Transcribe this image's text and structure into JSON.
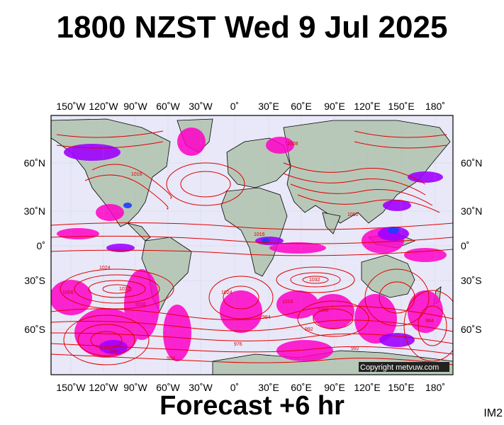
{
  "title": "1800 NZST Wed 9 Jul 2025",
  "subtitle": "Forecast +6 hr",
  "product_code": "IM2",
  "copyright": "Copyright metvuw.com",
  "colors": {
    "isobar": "#e00000",
    "ocean": "#e8e8f8",
    "land": "#b8c8b8",
    "rain_light": "#ff00c8",
    "rain_medium": "#a000ff",
    "rain_heavy": "#1e3cff"
  },
  "lon_ticks_top": [
    "150˚W",
    "120˚W",
    "90˚W",
    "60˚W",
    "30˚W",
    "0˚",
    "30˚E",
    "60˚E",
    "90˚E",
    "120˚E",
    "150˚E",
    "180˚"
  ],
  "lon_ticks_bottom": [
    "150˚W",
    "120˚W",
    "90˚W",
    "60˚W",
    "30˚W",
    "0˚",
    "30˚E",
    "60˚E",
    "90˚E",
    "120˚E",
    "150˚E",
    "180˚"
  ],
  "lat_ticks_left": [
    "60˚N",
    "30˚N",
    "0˚",
    "30˚S",
    "60˚S"
  ],
  "lat_ticks_right": [
    "60˚N",
    "30˚N",
    "0˚",
    "30˚S",
    "60˚S"
  ],
  "isobar_labels": [
    "1016",
    "1008",
    "1024",
    "1032",
    "1016",
    "1024",
    "1016",
    "1008",
    "1016",
    "1032",
    "992",
    "984",
    "976",
    "944",
    "984",
    "1008",
    "1000",
    "992",
    "984"
  ]
}
